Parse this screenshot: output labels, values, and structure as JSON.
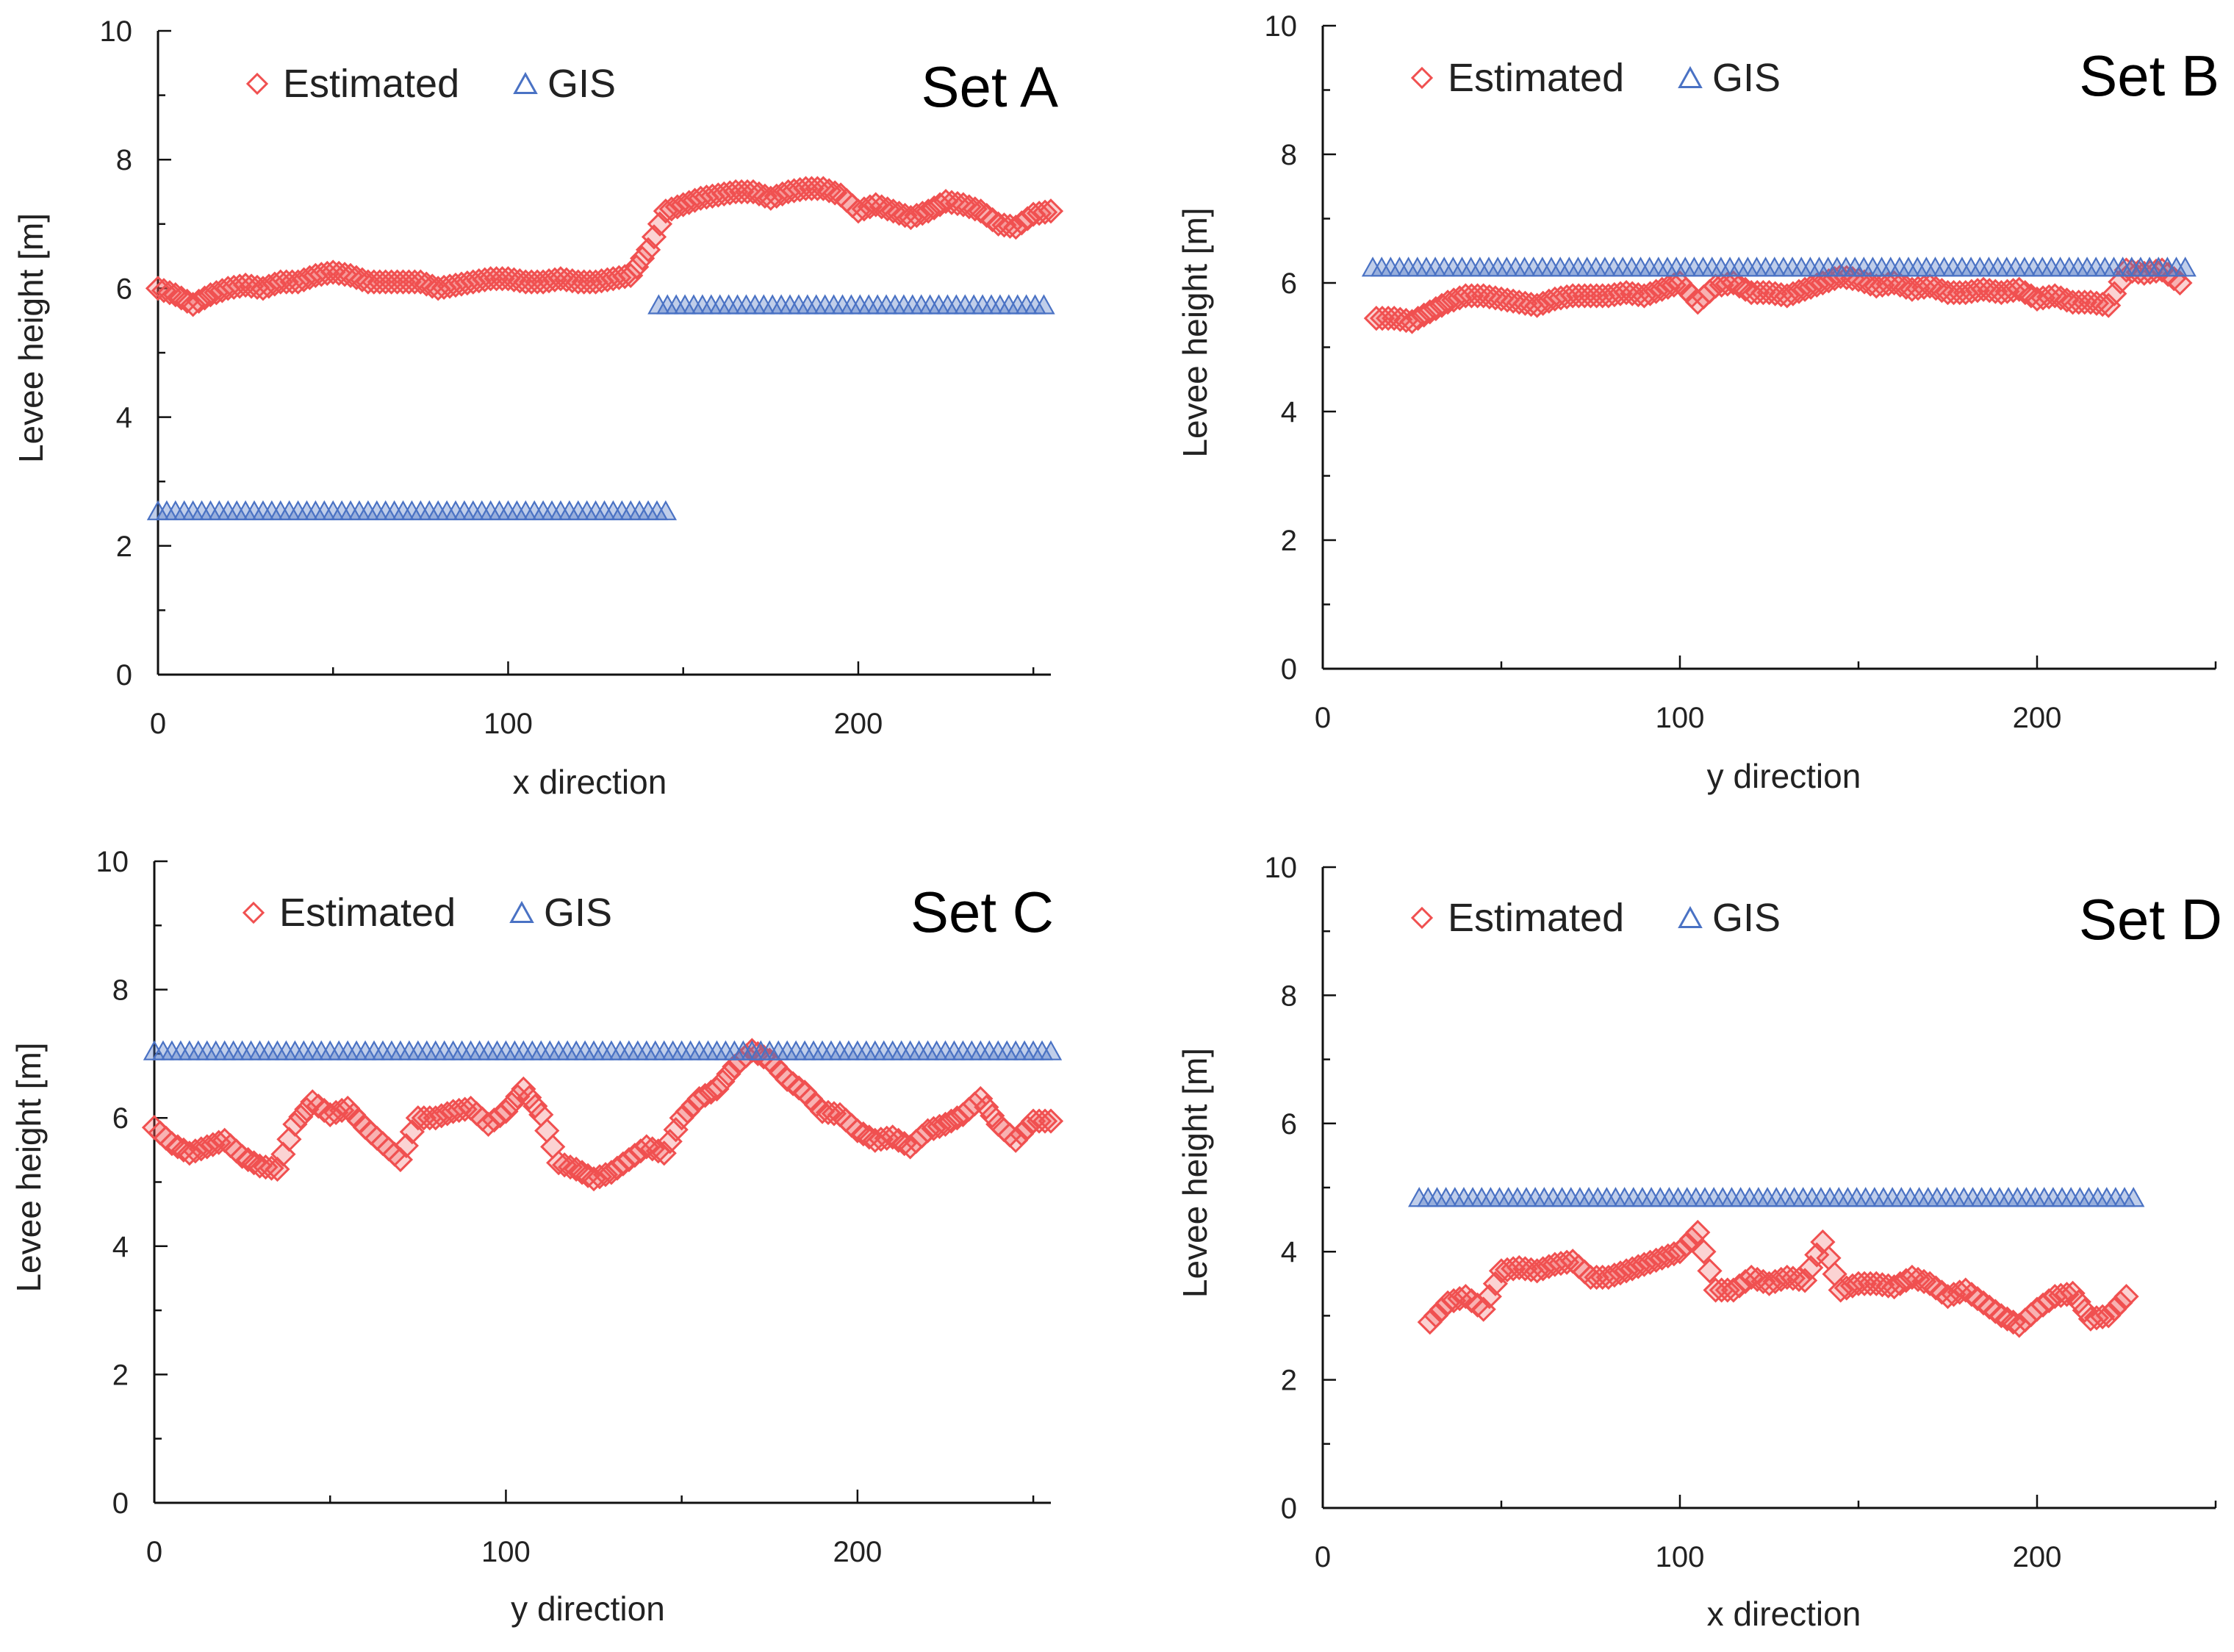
{
  "colors": {
    "estimated": "#f05050",
    "gis": "#4a72c4",
    "axis": "#111111"
  },
  "legend": {
    "estimated": "Estimated",
    "gis": "GIS"
  },
  "chart_data": [
    {
      "type": "scatter",
      "title": "Set A",
      "xlabel": "x direction",
      "ylabel": "Levee height [m]",
      "xlim": [
        0,
        255
      ],
      "ylim": [
        0,
        10
      ],
      "x_ticks": [
        0,
        100,
        200
      ],
      "y_ticks": [
        0,
        2,
        4,
        6,
        8,
        10
      ],
      "series": [
        {
          "name": "Estimated",
          "x": [
            0,
            5,
            10,
            15,
            20,
            25,
            30,
            35,
            40,
            45,
            50,
            55,
            60,
            65,
            70,
            75,
            80,
            85,
            90,
            95,
            100,
            105,
            110,
            115,
            120,
            125,
            130,
            135,
            140,
            145,
            150,
            155,
            160,
            165,
            170,
            175,
            180,
            185,
            190,
            195,
            200,
            205,
            210,
            215,
            220,
            225,
            230,
            235,
            240,
            245,
            250,
            255
          ],
          "y": [
            6.0,
            5.9,
            5.75,
            5.9,
            6.0,
            6.05,
            6.0,
            6.1,
            6.1,
            6.2,
            6.25,
            6.2,
            6.1,
            6.1,
            6.1,
            6.1,
            6.0,
            6.05,
            6.1,
            6.15,
            6.15,
            6.1,
            6.1,
            6.15,
            6.1,
            6.1,
            6.15,
            6.2,
            6.6,
            7.2,
            7.3,
            7.4,
            7.45,
            7.5,
            7.5,
            7.4,
            7.5,
            7.55,
            7.55,
            7.45,
            7.2,
            7.3,
            7.2,
            7.1,
            7.2,
            7.35,
            7.3,
            7.2,
            7.0,
            6.95,
            7.15,
            7.2
          ]
        },
        {
          "name": "GIS",
          "segments": [
            {
              "x_from": 0,
              "x_to": 145,
              "y": 2.5
            },
            {
              "x_from": 143,
              "x_to": 255,
              "y": 5.7
            }
          ],
          "x_step": 2.5
        }
      ]
    },
    {
      "type": "scatter",
      "title": "Set B",
      "xlabel": "y direction",
      "ylabel": "Levee height [m]",
      "xlim": [
        0,
        250
      ],
      "ylim": [
        0,
        10
      ],
      "x_ticks": [
        0,
        100,
        200
      ],
      "y_ticks": [
        0,
        2,
        4,
        6,
        8,
        10
      ],
      "series": [
        {
          "name": "Estimated",
          "x": [
            15,
            20,
            25,
            30,
            35,
            40,
            45,
            50,
            55,
            60,
            65,
            70,
            75,
            80,
            85,
            90,
            95,
            100,
            105,
            110,
            115,
            120,
            125,
            130,
            135,
            140,
            145,
            150,
            155,
            160,
            165,
            170,
            175,
            180,
            185,
            190,
            195,
            200,
            205,
            210,
            215,
            220,
            225,
            230,
            235,
            240
          ],
          "y": [
            5.45,
            5.45,
            5.4,
            5.55,
            5.7,
            5.8,
            5.8,
            5.75,
            5.7,
            5.65,
            5.75,
            5.8,
            5.8,
            5.8,
            5.85,
            5.8,
            5.9,
            6.0,
            5.7,
            5.95,
            6.0,
            5.85,
            5.85,
            5.8,
            5.9,
            6.0,
            6.1,
            6.05,
            5.95,
            6.0,
            5.9,
            5.95,
            5.85,
            5.85,
            5.9,
            5.85,
            5.9,
            5.75,
            5.8,
            5.7,
            5.7,
            5.65,
            6.2,
            6.15,
            6.2,
            6.0
          ]
        },
        {
          "name": "GIS",
          "segments": [
            {
              "x_from": 14,
              "x_to": 242,
              "y": 6.2
            }
          ],
          "x_step": 2.5
        }
      ]
    },
    {
      "type": "scatter",
      "title": "Set C",
      "xlabel": "y direction",
      "ylabel": "Levee height [m]",
      "xlim": [
        0,
        255
      ],
      "ylim": [
        0,
        10
      ],
      "x_ticks": [
        0,
        100,
        200
      ],
      "y_ticks": [
        0,
        2,
        4,
        6,
        8,
        10
      ],
      "series": [
        {
          "name": "Estimated",
          "x": [
            0,
            5,
            10,
            15,
            20,
            25,
            30,
            35,
            40,
            45,
            50,
            55,
            60,
            65,
            70,
            75,
            80,
            85,
            90,
            95,
            100,
            105,
            110,
            115,
            120,
            125,
            130,
            135,
            140,
            145,
            150,
            155,
            160,
            165,
            170,
            175,
            180,
            185,
            190,
            195,
            200,
            205,
            210,
            215,
            220,
            225,
            230,
            235,
            240,
            245,
            250,
            255
          ],
          "y": [
            5.85,
            5.6,
            5.45,
            5.55,
            5.65,
            5.4,
            5.25,
            5.2,
            5.9,
            6.25,
            6.05,
            6.15,
            5.85,
            5.6,
            5.35,
            6.0,
            6.0,
            6.1,
            6.15,
            5.9,
            6.1,
            6.45,
            6.05,
            5.3,
            5.2,
            5.05,
            5.15,
            5.35,
            5.55,
            5.45,
            6.0,
            6.3,
            6.45,
            6.8,
            7.05,
            6.9,
            6.6,
            6.4,
            6.1,
            6.05,
            5.8,
            5.65,
            5.7,
            5.55,
            5.8,
            5.9,
            6.05,
            6.3,
            5.9,
            5.65,
            5.95,
            5.95
          ]
        },
        {
          "name": "GIS",
          "segments": [
            {
              "x_from": 0,
              "x_to": 255,
              "y": 7.0
            }
          ],
          "x_step": 2.5
        }
      ]
    },
    {
      "type": "scatter",
      "title": "Set D",
      "xlabel": "x direction",
      "ylabel": "Levee height [m]",
      "xlim": [
        0,
        250
      ],
      "ylim": [
        0,
        10
      ],
      "x_ticks": [
        0,
        100,
        200
      ],
      "y_ticks": [
        0,
        2,
        4,
        6,
        8,
        10
      ],
      "series": [
        {
          "name": "Estimated",
          "x": [
            30,
            35,
            40,
            45,
            50,
            55,
            60,
            65,
            70,
            75,
            80,
            85,
            90,
            95,
            100,
            105,
            110,
            115,
            120,
            125,
            130,
            135,
            140,
            145,
            150,
            155,
            160,
            165,
            170,
            175,
            180,
            185,
            190,
            195,
            200,
            205,
            210,
            215,
            220,
            225
          ],
          "y": [
            2.9,
            3.2,
            3.3,
            3.1,
            3.7,
            3.75,
            3.7,
            3.8,
            3.85,
            3.6,
            3.6,
            3.7,
            3.8,
            3.9,
            4.0,
            4.3,
            3.4,
            3.4,
            3.6,
            3.5,
            3.6,
            3.55,
            4.15,
            3.4,
            3.5,
            3.5,
            3.45,
            3.6,
            3.5,
            3.3,
            3.4,
            3.2,
            3.0,
            2.85,
            3.1,
            3.3,
            3.35,
            2.95,
            3.0,
            3.3
          ]
        },
        {
          "name": "GIS",
          "segments": [
            {
              "x_from": 27,
              "x_to": 229,
              "y": 4.8
            }
          ],
          "x_step": 2.5
        }
      ]
    }
  ]
}
